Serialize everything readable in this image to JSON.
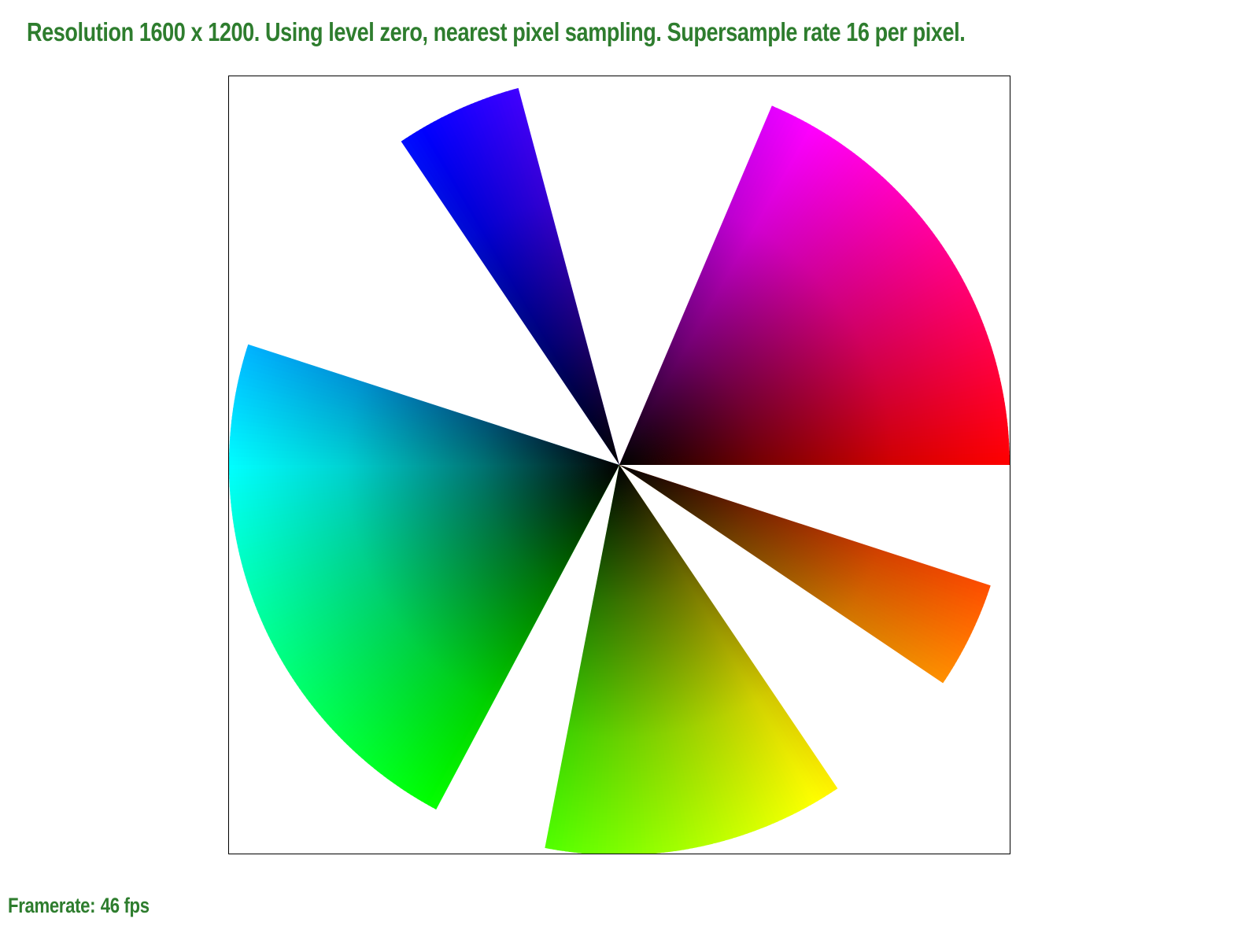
{
  "header": {
    "text": "Resolution 1600 x 1200. Using level zero, nearest pixel sampling. Supersample rate 16 per pixel."
  },
  "footer": {
    "framerate_label": "Framerate:",
    "framerate_value": "46 fps"
  },
  "colors": {
    "text": "#2e7d2e",
    "border": "#000000",
    "background": "#ffffff"
  },
  "wheel": {
    "sectors": [
      {
        "start_deg": 0,
        "end_deg": 67
      },
      {
        "start_deg": 105,
        "end_deg": 124
      },
      {
        "start_deg": 162,
        "end_deg": 242
      },
      {
        "start_deg": 259,
        "end_deg": 304
      },
      {
        "start_deg": 326,
        "end_deg": 342
      }
    ]
  }
}
